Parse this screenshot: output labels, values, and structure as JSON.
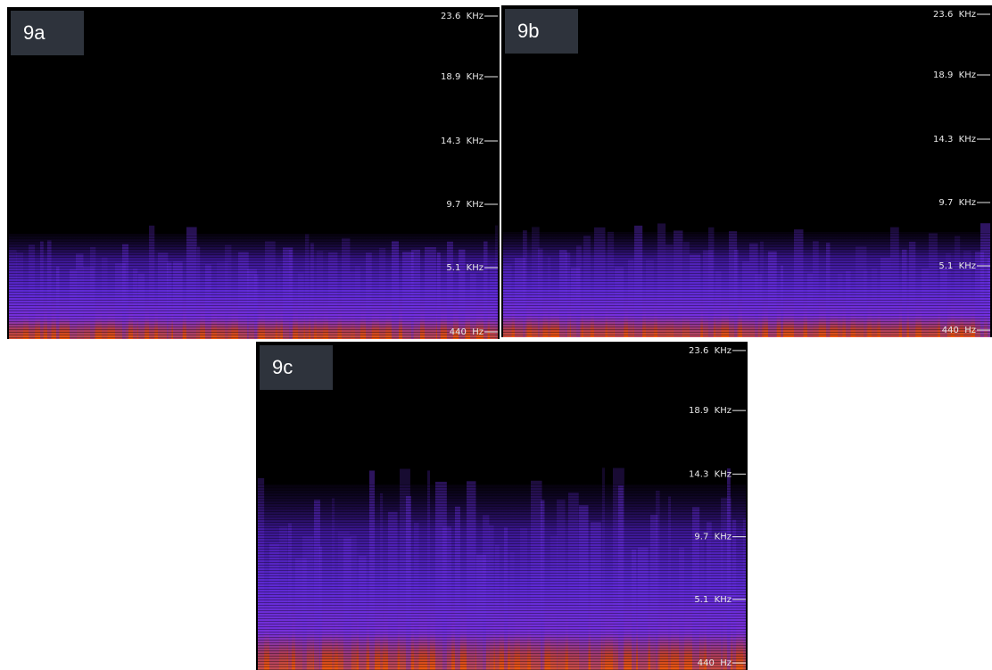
{
  "panels": [
    {
      "label": "9a",
      "ticks": [
        "23.6  KHz",
        "18.9  KHz",
        "14.3  KHz",
        "9.7  KHz",
        "5.1  KHz",
        "440  Hz"
      ]
    },
    {
      "label": "9b",
      "ticks": [
        "23.6  KHz",
        "18.9  KHz",
        "14.3  KHz",
        "9.7  KHz",
        "5.1  KHz",
        "440  Hz"
      ]
    },
    {
      "label": "9c",
      "ticks": [
        "23.6  KHz",
        "18.9  KHz",
        "14.3  KHz",
        "9.7  KHz",
        "5.1  KHz",
        "440  Hz"
      ]
    }
  ]
}
